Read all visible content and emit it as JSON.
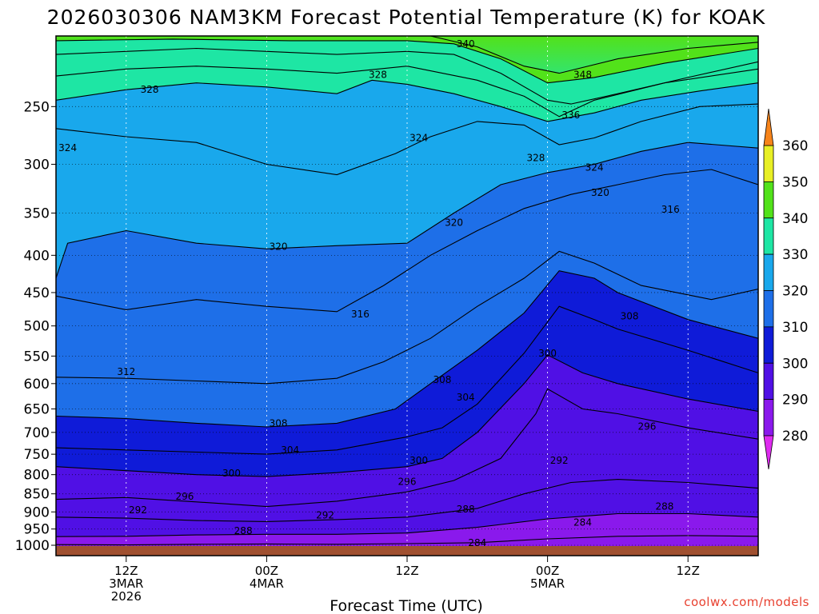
{
  "chart_data": {
    "type": "heatmap",
    "title": "2026030306 NAM3KM Forecast Potential Temperature (K) for KOAK",
    "xlabel": "Forecast Time (UTC)",
    "ylabel": "",
    "y_axis": {
      "scale": "log-pressure",
      "range_hpa": [
        1000,
        200
      ],
      "ticks": [
        "250",
        "300",
        "350",
        "400",
        "450",
        "500",
        "550",
        "600",
        "650",
        "700",
        "750",
        "800",
        "850",
        "900",
        "950",
        "1000"
      ]
    },
    "x_axis": {
      "range_hours_from_start": [
        0,
        60
      ],
      "ticks": [
        {
          "hour": 6,
          "lines": [
            "12Z",
            "3MAR",
            "2026"
          ]
        },
        {
          "hour": 18,
          "lines": [
            "00Z",
            "4MAR"
          ]
        },
        {
          "hour": 30,
          "lines": [
            "12Z"
          ]
        },
        {
          "hour": 42,
          "lines": [
            "00Z",
            "5MAR"
          ]
        },
        {
          "hour": 54,
          "lines": [
            "12Z"
          ]
        }
      ]
    },
    "colorbar": {
      "levels": [
        "280",
        "290",
        "300",
        "310",
        "320",
        "330",
        "340",
        "350",
        "360"
      ],
      "colors": [
        "#de2bf0",
        "#8a19ec",
        "#5010e5",
        "#0f1bd8",
        "#1e6fe8",
        "#19a8ec",
        "#1ee6a4",
        "#52e21a",
        "#e8ef25",
        "#fbb51b",
        "#f7841a"
      ]
    },
    "isentropes": [
      {
        "theta": 284,
        "points": [
          [
            0,
            998
          ],
          [
            6,
            999
          ],
          [
            12,
            997
          ],
          [
            18,
            996
          ],
          [
            24,
            997
          ],
          [
            30,
            995
          ],
          [
            36,
            992
          ],
          [
            42,
            980
          ],
          [
            48,
            972
          ],
          [
            54,
            970
          ],
          [
            60,
            972
          ]
        ]
      },
      {
        "theta": 288,
        "points": [
          [
            0,
            973
          ],
          [
            6,
            972
          ],
          [
            12,
            968
          ],
          [
            18,
            966
          ],
          [
            24,
            966
          ],
          [
            30,
            962
          ],
          [
            36,
            945
          ],
          [
            42,
            920
          ],
          [
            48,
            905
          ],
          [
            54,
            905
          ],
          [
            60,
            915
          ]
        ]
      },
      {
        "theta": 292,
        "points": [
          [
            0,
            915
          ],
          [
            6,
            918
          ],
          [
            12,
            925
          ],
          [
            18,
            928
          ],
          [
            24,
            922
          ],
          [
            30,
            915
          ],
          [
            36,
            890
          ],
          [
            40,
            850
          ],
          [
            44,
            820
          ],
          [
            48,
            812
          ],
          [
            54,
            820
          ],
          [
            60,
            835
          ]
        ]
      },
      {
        "theta": 296,
        "points": [
          [
            0,
            865
          ],
          [
            6,
            860
          ],
          [
            12,
            872
          ],
          [
            18,
            885
          ],
          [
            24,
            870
          ],
          [
            30,
            845
          ],
          [
            34,
            815
          ],
          [
            38,
            760
          ],
          [
            41,
            660
          ],
          [
            42,
            610
          ],
          [
            45,
            650
          ],
          [
            48,
            660
          ],
          [
            54,
            690
          ],
          [
            60,
            715
          ]
        ]
      },
      {
        "theta": 300,
        "points": [
          [
            0,
            780
          ],
          [
            6,
            790
          ],
          [
            12,
            800
          ],
          [
            18,
            805
          ],
          [
            24,
            795
          ],
          [
            30,
            780
          ],
          [
            33,
            760
          ],
          [
            36,
            700
          ],
          [
            40,
            600
          ],
          [
            42,
            548
          ],
          [
            45,
            580
          ],
          [
            48,
            600
          ],
          [
            54,
            630
          ],
          [
            60,
            655
          ]
        ]
      },
      {
        "theta": 304,
        "points": [
          [
            0,
            735
          ],
          [
            6,
            740
          ],
          [
            12,
            745
          ],
          [
            18,
            750
          ],
          [
            24,
            740
          ],
          [
            30,
            710
          ],
          [
            33,
            690
          ],
          [
            36,
            640
          ],
          [
            40,
            545
          ],
          [
            43,
            470
          ],
          [
            46,
            490
          ],
          [
            48,
            505
          ],
          [
            54,
            540
          ],
          [
            60,
            580
          ]
        ]
      },
      {
        "theta": 308,
        "points": [
          [
            0,
            665
          ],
          [
            6,
            670
          ],
          [
            12,
            680
          ],
          [
            18,
            688
          ],
          [
            24,
            680
          ],
          [
            29,
            650
          ],
          [
            32,
            600
          ],
          [
            36,
            540
          ],
          [
            40,
            480
          ],
          [
            43,
            420
          ],
          [
            46,
            430
          ],
          [
            48,
            450
          ],
          [
            54,
            490
          ],
          [
            60,
            520
          ]
        ]
      },
      {
        "theta": 312,
        "points": [
          [
            0,
            588
          ],
          [
            6,
            590
          ],
          [
            12,
            595
          ],
          [
            18,
            600
          ],
          [
            24,
            590
          ],
          [
            28,
            560
          ],
          [
            32,
            520
          ],
          [
            36,
            470
          ],
          [
            40,
            430
          ],
          [
            43,
            395
          ],
          [
            46,
            410
          ],
          [
            50,
            440
          ],
          [
            56,
            460
          ],
          [
            60,
            445
          ]
        ]
      },
      {
        "theta": 316,
        "points": [
          [
            0,
            455
          ],
          [
            6,
            475
          ],
          [
            12,
            460
          ],
          [
            18,
            470
          ],
          [
            24,
            478
          ],
          [
            28,
            440
          ],
          [
            32,
            400
          ],
          [
            36,
            370
          ],
          [
            40,
            345
          ],
          [
            44,
            330
          ],
          [
            48,
            320
          ],
          [
            52,
            310
          ],
          [
            56,
            305
          ],
          [
            60,
            320
          ]
        ]
      },
      {
        "theta": 320,
        "points": [
          [
            0,
            430
          ],
          [
            1,
            385
          ],
          [
            6,
            370
          ],
          [
            12,
            385
          ],
          [
            18,
            392
          ],
          [
            24,
            388
          ],
          [
            30,
            385
          ],
          [
            34,
            350
          ],
          [
            38,
            320
          ],
          [
            42,
            308
          ],
          [
            46,
            300
          ],
          [
            50,
            288
          ],
          [
            54,
            280
          ],
          [
            60,
            285
          ]
        ]
      },
      {
        "theta": 324,
        "points": [
          [
            0,
            268
          ],
          [
            6,
            275
          ],
          [
            12,
            280
          ],
          [
            18,
            300
          ],
          [
            24,
            310
          ],
          [
            29,
            290
          ],
          [
            32,
            275
          ],
          [
            36,
            262
          ],
          [
            40,
            265
          ],
          [
            43,
            282
          ],
          [
            46,
            276
          ],
          [
            50,
            262
          ],
          [
            55,
            250
          ],
          [
            60,
            248
          ]
        ]
      },
      {
        "theta": 328,
        "points": [
          [
            0,
            245
          ],
          [
            6,
            237
          ],
          [
            12,
            232
          ],
          [
            18,
            235
          ],
          [
            24,
            240
          ],
          [
            27,
            230
          ],
          [
            30,
            233
          ],
          [
            34,
            240
          ],
          [
            38,
            250
          ],
          [
            42,
            262
          ],
          [
            46,
            255
          ],
          [
            50,
            245
          ],
          [
            55,
            238
          ],
          [
            60,
            232
          ]
        ]
      },
      {
        "theta": 332,
        "points": [
          [
            0,
            227
          ],
          [
            6,
            222
          ],
          [
            12,
            220
          ],
          [
            18,
            222
          ],
          [
            24,
            225
          ],
          [
            30,
            220
          ],
          [
            36,
            230
          ],
          [
            40,
            242
          ],
          [
            43,
            258
          ],
          [
            46,
            245
          ],
          [
            52,
            232
          ],
          [
            60,
            222
          ]
        ]
      },
      {
        "theta": 336,
        "points": [
          [
            0,
            212
          ],
          [
            6,
            210
          ],
          [
            12,
            208
          ],
          [
            18,
            210
          ],
          [
            24,
            212
          ],
          [
            30,
            210
          ],
          [
            34,
            212
          ],
          [
            38,
            225
          ],
          [
            42,
            245
          ],
          [
            44,
            248
          ],
          [
            48,
            240
          ],
          [
            54,
            228
          ],
          [
            60,
            217
          ]
        ]
      },
      {
        "theta": 340,
        "points": [
          [
            0,
            203
          ],
          [
            10,
            202
          ],
          [
            20,
            203
          ],
          [
            30,
            203
          ],
          [
            34,
            205
          ],
          [
            38,
            215
          ],
          [
            42,
            232
          ],
          [
            46,
            228
          ],
          [
            52,
            218
          ],
          [
            60,
            208
          ]
        ]
      },
      {
        "theta": 348,
        "points": [
          [
            32,
            200
          ],
          [
            36,
            207
          ],
          [
            40,
            220
          ],
          [
            43,
            225
          ],
          [
            48,
            215
          ],
          [
            54,
            208
          ],
          [
            60,
            204
          ]
        ]
      }
    ],
    "contour_labels": [
      {
        "text": "340",
        "hour": 35,
        "hpa": 205
      },
      {
        "text": "328",
        "hour": 27.5,
        "hpa": 226
      },
      {
        "text": "348",
        "hour": 45,
        "hpa": 226
      },
      {
        "text": "328",
        "hour": 8,
        "hpa": 237
      },
      {
        "text": "336",
        "hour": 44,
        "hpa": 257
      },
      {
        "text": "324",
        "hour": 1,
        "hpa": 285
      },
      {
        "text": "324",
        "hour": 31,
        "hpa": 276
      },
      {
        "text": "328",
        "hour": 41,
        "hpa": 294
      },
      {
        "text": "324",
        "hour": 46,
        "hpa": 303
      },
      {
        "text": "320",
        "hour": 46.5,
        "hpa": 328
      },
      {
        "text": "316",
        "hour": 52.5,
        "hpa": 346
      },
      {
        "text": "320",
        "hour": 34,
        "hpa": 361
      },
      {
        "text": "320",
        "hour": 19,
        "hpa": 389
      },
      {
        "text": "316",
        "hour": 26,
        "hpa": 482
      },
      {
        "text": "308",
        "hour": 49,
        "hpa": 485
      },
      {
        "text": "300",
        "hour": 42,
        "hpa": 545
      },
      {
        "text": "312",
        "hour": 6,
        "hpa": 578
      },
      {
        "text": "308",
        "hour": 33,
        "hpa": 593
      },
      {
        "text": "304",
        "hour": 35,
        "hpa": 627
      },
      {
        "text": "296",
        "hour": 50.5,
        "hpa": 687
      },
      {
        "text": "308",
        "hour": 19,
        "hpa": 680
      },
      {
        "text": "304",
        "hour": 20,
        "hpa": 740
      },
      {
        "text": "292",
        "hour": 43,
        "hpa": 765
      },
      {
        "text": "300",
        "hour": 31,
        "hpa": 765
      },
      {
        "text": "300",
        "hour": 15,
        "hpa": 797
      },
      {
        "text": "296",
        "hour": 30,
        "hpa": 818
      },
      {
        "text": "296",
        "hour": 11,
        "hpa": 857
      },
      {
        "text": "288",
        "hour": 52,
        "hpa": 885
      },
      {
        "text": "288",
        "hour": 35,
        "hpa": 893
      },
      {
        "text": "292",
        "hour": 7,
        "hpa": 895
      },
      {
        "text": "292",
        "hour": 23,
        "hpa": 910
      },
      {
        "text": "284",
        "hour": 45,
        "hpa": 931
      },
      {
        "text": "288",
        "hour": 16,
        "hpa": 956
      },
      {
        "text": "284",
        "hour": 36,
        "hpa": 993
      }
    ]
  },
  "footer": {
    "credit": "coolwx.com/models"
  }
}
